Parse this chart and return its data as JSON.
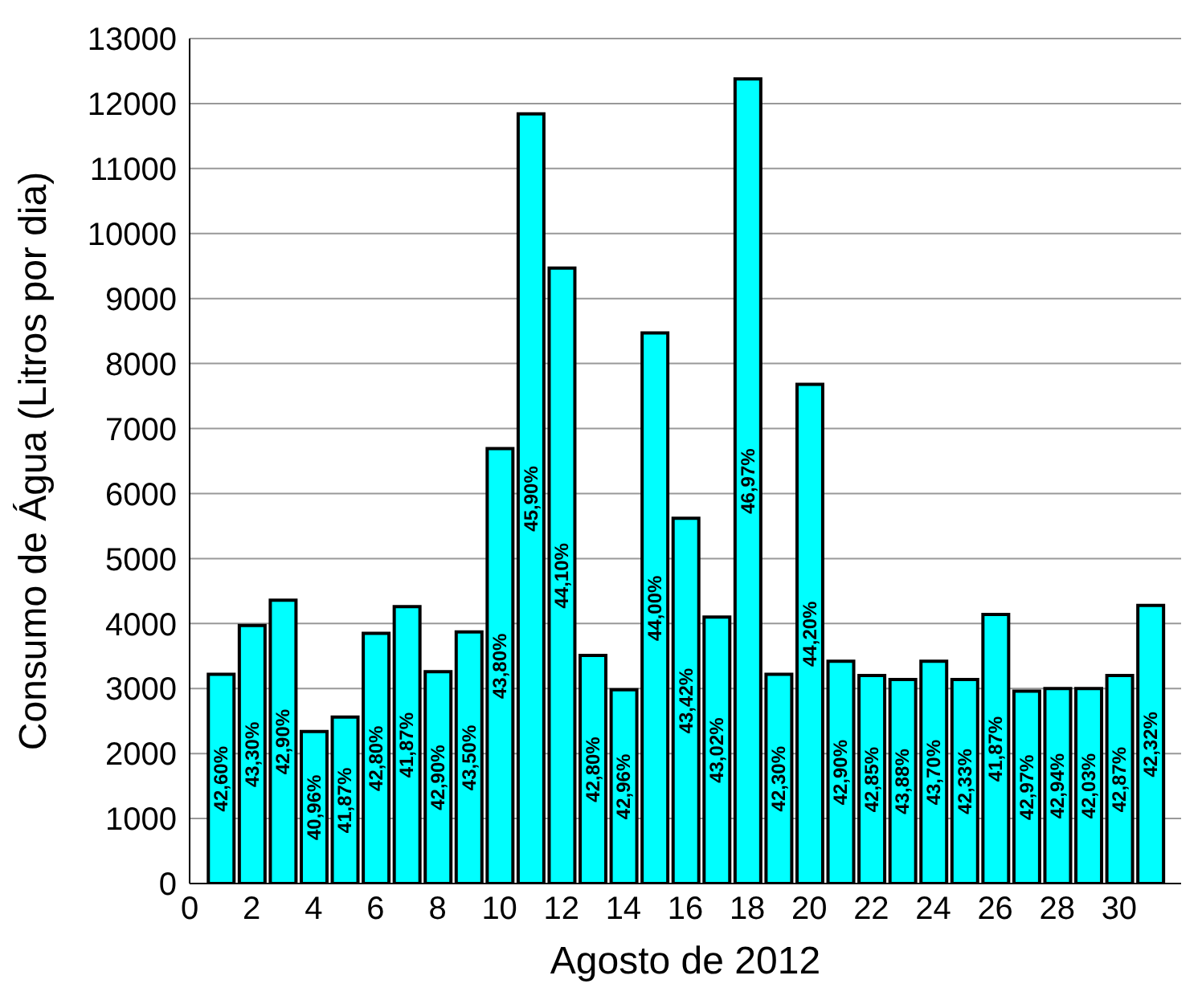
{
  "chart_data": {
    "type": "bar",
    "xlabel": "Agosto de 2012",
    "ylabel": "Consumo de Água (Litros por dia)",
    "x": [
      1,
      2,
      3,
      4,
      5,
      6,
      7,
      8,
      9,
      10,
      11,
      12,
      13,
      14,
      15,
      16,
      17,
      18,
      19,
      20,
      21,
      22,
      23,
      24,
      25,
      26,
      27,
      28,
      29,
      30,
      31
    ],
    "values": [
      3220,
      3970,
      4360,
      2340,
      2560,
      3850,
      4260,
      3260,
      3870,
      6690,
      11840,
      9470,
      3510,
      2980,
      8470,
      5620,
      4100,
      12380,
      3220,
      7680,
      3420,
      3200,
      3140,
      3420,
      3140,
      4140,
      2960,
      3000,
      3000,
      3200,
      4280
    ],
    "annotations": [
      "42,60%",
      "43,30%",
      "42,90%",
      "40,96%",
      "41,87%",
      "42,80%",
      "41,87%",
      "42,90%",
      "43,50%",
      "43,80%",
      "45,90%",
      "44,10%",
      "42,80%",
      "42,96%",
      "44,00%",
      "43,42%",
      "43,02%",
      "46,97%",
      "42,30%",
      "44,20%",
      "42,90%",
      "42,85%",
      "43,88%",
      "43,70%",
      "42,33%",
      "41,87%",
      "42,97%",
      "42,94%",
      "42,03%",
      "42,87%",
      "42,32%"
    ],
    "color": "#00ffff",
    "xlim": [
      0,
      32
    ],
    "xticks": [
      0,
      2,
      4,
      6,
      8,
      10,
      12,
      14,
      16,
      18,
      20,
      22,
      24,
      26,
      28,
      30
    ],
    "ylim": [
      0,
      13000
    ],
    "yticks": [
      0,
      1000,
      2000,
      3000,
      4000,
      5000,
      6000,
      7000,
      8000,
      9000,
      10000,
      11000,
      12000,
      13000
    ],
    "grid": "y"
  }
}
